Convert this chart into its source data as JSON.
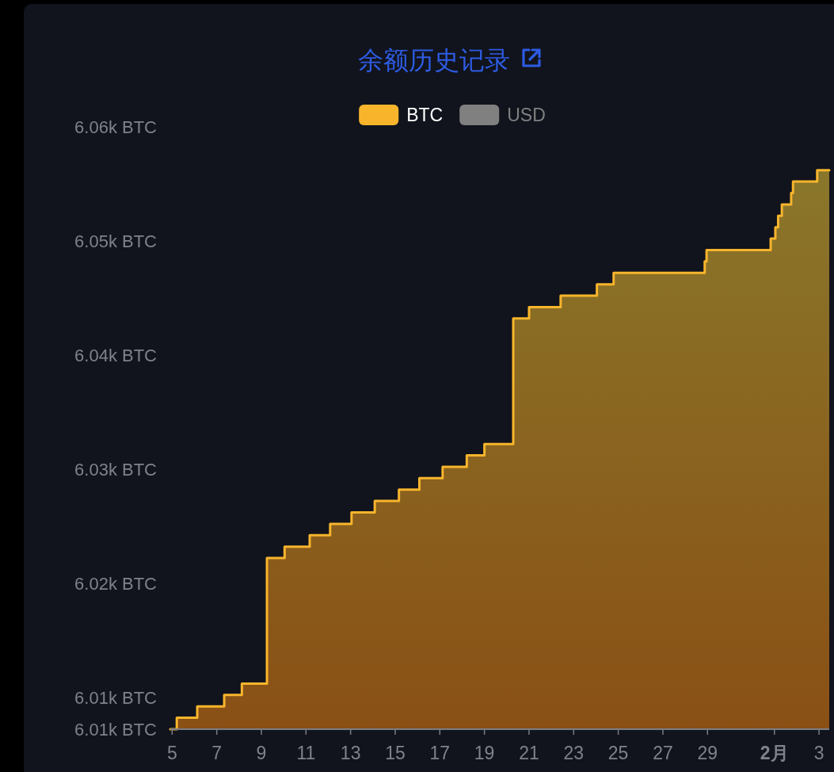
{
  "chart_data": {
    "type": "area",
    "title": "余额历史记录",
    "x": [
      "--01-04T22:00",
      "--01-05T05:00",
      "--01-05T05:00",
      "--01-06T03:00",
      "--01-06T03:00",
      "--01-07T08:00",
      "--01-07T08:00",
      "--01-08T03:00",
      "--01-08T03:00",
      "--01-09T06:00",
      "--01-09T06:00",
      "--01-10T01:00",
      "--01-10T01:00",
      "--01-11T04:00",
      "--01-11T04:00",
      "--01-12T02:00",
      "--01-12T02:00",
      "--01-13T01:00",
      "--01-13T01:00",
      "--01-14T02:00",
      "--01-14T02:00",
      "--01-15T04:00",
      "--01-15T04:00",
      "--01-16T02:00",
      "--01-16T02:00",
      "--01-17T03:00",
      "--01-17T03:00",
      "--01-18T05:00",
      "--01-18T05:00",
      "--01-19T00:00",
      "--01-19T00:00",
      "--01-20T07:00",
      "--01-20T07:00",
      "--01-21T00:00",
      "--01-21T00:00",
      "--01-22T10:00",
      "--01-22T10:00",
      "--01-24T01:00",
      "--01-24T01:00",
      "--01-24T19:00",
      "--01-24T19:00",
      "--01-28T21:00",
      "--01-28T21:00",
      "--01-28T23:00",
      "--01-28T23:00",
      "--01-31T20:00",
      "--01-31T20:00",
      "--02-01T01:00",
      "--02-01T01:00",
      "--02-01T04:00",
      "--02-01T04:00",
      "--02-01T08:00",
      "--02-01T08:00",
      "--02-01T18:00",
      "--02-01T18:00",
      "--02-01T20:00",
      "--02-01T20:00",
      "--02-02T22:00",
      "--02-02T22:00",
      "--02-03T11:00"
    ],
    "series": [
      {
        "name": "BTC",
        "color": "#f8b52c",
        "values": [
          6007.2,
          6007.2,
          6008.2,
          6008.2,
          6009.2,
          6009.2,
          6010.2,
          6010.2,
          6011.2,
          6011.2,
          6022.2,
          6022.2,
          6023.2,
          6023.2,
          6024.2,
          6024.2,
          6025.2,
          6025.2,
          6026.2,
          6026.2,
          6027.2,
          6027.2,
          6028.2,
          6028.2,
          6029.2,
          6029.2,
          6030.2,
          6030.2,
          6031.2,
          6031.2,
          6032.2,
          6032.2,
          6043.2,
          6043.2,
          6044.2,
          6044.2,
          6045.2,
          6045.2,
          6046.2,
          6046.2,
          6047.2,
          6047.2,
          6048.2,
          6048.2,
          6049.2,
          6049.2,
          6050.2,
          6050.2,
          6051.2,
          6051.2,
          6052.2,
          6052.2,
          6053.2,
          6053.2,
          6054.2,
          6054.2,
          6055.2,
          6055.2,
          6056.2,
          6056.2
        ]
      },
      {
        "name": "USD",
        "color": "#808080",
        "values": [
          null,
          null,
          null,
          null,
          null,
          null,
          null,
          null,
          null,
          null,
          null,
          null,
          null,
          null,
          null,
          null,
          null,
          null,
          null,
          null,
          null,
          null,
          null,
          null,
          null,
          null,
          null,
          null,
          null,
          null,
          null,
          null,
          null,
          null,
          null,
          null,
          null,
          null,
          null,
          null,
          null,
          null,
          null,
          null,
          null,
          null,
          null,
          null,
          null,
          null,
          null,
          null,
          null,
          null,
          null,
          null,
          null,
          null,
          null,
          null
        ]
      }
    ],
    "xlim": [
      "--01-04T22:00",
      "--02-03T11:00"
    ],
    "ylim": [
      6007.2,
      6060
    ],
    "xticks": [
      {
        "value": "--01-05",
        "label": "5"
      },
      {
        "value": "--01-07",
        "label": "7"
      },
      {
        "value": "--01-09",
        "label": "9"
      },
      {
        "value": "--01-11",
        "label": "11"
      },
      {
        "value": "--01-13",
        "label": "13"
      },
      {
        "value": "--01-15",
        "label": "15"
      },
      {
        "value": "--01-17",
        "label": "17"
      },
      {
        "value": "--01-19",
        "label": "19"
      },
      {
        "value": "--01-21",
        "label": "21"
      },
      {
        "value": "--01-23",
        "label": "23"
      },
      {
        "value": "--01-25",
        "label": "25"
      },
      {
        "value": "--01-27",
        "label": "27"
      },
      {
        "value": "--01-29",
        "label": "29"
      },
      {
        "value": "--02-01",
        "label": "2月"
      },
      {
        "value": "--02-03",
        "label": "3"
      }
    ],
    "yticks": [
      {
        "value": 6007.2,
        "label": "6.01k BTC"
      },
      {
        "value": 6010,
        "label": "6.01k BTC"
      },
      {
        "value": 6020,
        "label": "6.02k BTC"
      },
      {
        "value": 6030,
        "label": "6.03k BTC"
      },
      {
        "value": 6040,
        "label": "6.04k BTC"
      },
      {
        "value": 6050,
        "label": "6.05k BTC"
      },
      {
        "value": 6060,
        "label": "6.06k BTC"
      }
    ],
    "legend": "top"
  }
}
